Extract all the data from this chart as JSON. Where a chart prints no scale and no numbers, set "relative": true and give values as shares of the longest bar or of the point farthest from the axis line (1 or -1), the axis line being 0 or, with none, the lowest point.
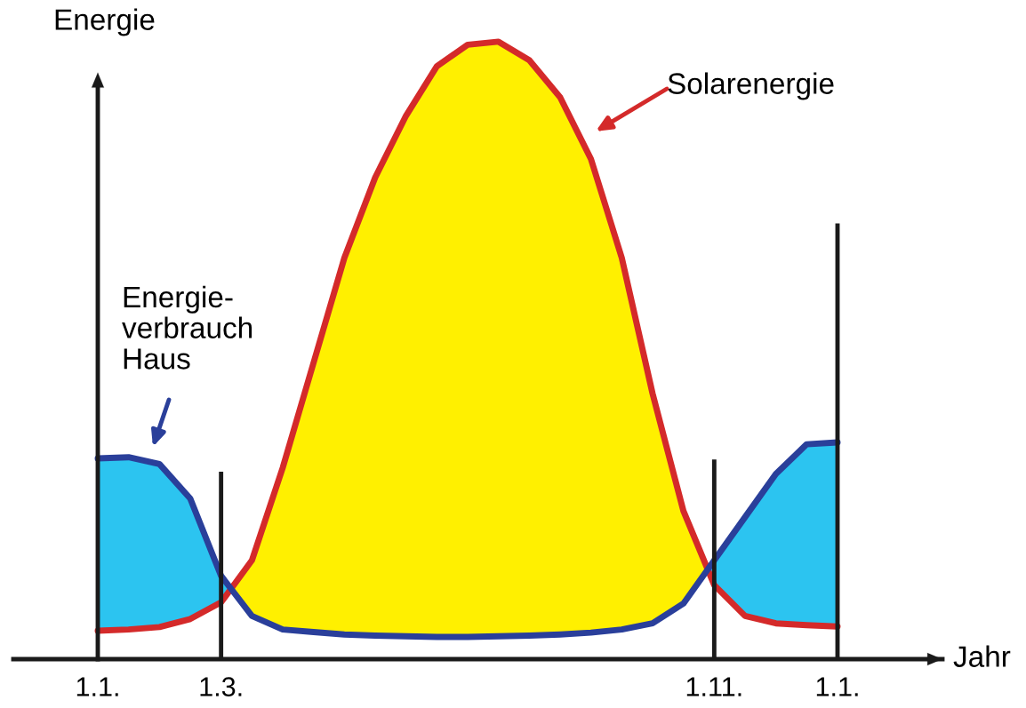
{
  "chart_data": {
    "type": "line",
    "relative": true,
    "xlabel": "Jahr",
    "ylabel": "Energie",
    "categories": [
      "1.1.",
      null,
      null,
      null,
      "1.3.",
      null,
      null,
      null,
      null,
      null,
      null,
      null,
      null,
      null,
      null,
      null,
      null,
      null,
      null,
      null,
      "1.11.",
      null,
      null,
      null,
      "1.1."
    ],
    "series": [
      {
        "color": "#d42a2a",
        "values": [
          0.046,
          0.048,
          0.052,
          0.065,
          0.092,
          0.16,
          0.31,
          0.48,
          0.65,
          0.78,
          0.88,
          0.96,
          0.995,
          1,
          0.97,
          0.91,
          0.81,
          0.65,
          0.43,
          0.24,
          0.12,
          0.07,
          0.058,
          0.055,
          0.053
        ]
      },
      {
        "color": "#2a3f9a",
        "values": [
          0.325,
          0.327,
          0.316,
          0.26,
          0.135,
          0.07,
          0.048,
          0.044,
          0.04,
          0.038,
          0.037,
          0.036,
          0.036,
          0.037,
          0.038,
          0.04,
          0.043,
          0.048,
          0.058,
          0.09,
          0.16,
          0.23,
          0.3,
          0.348,
          0.351
        ]
      }
    ],
    "ref_lines": [
      {
        "axis": "x",
        "value": "1.3.",
        "color": "#1a1a1a"
      },
      {
        "axis": "x",
        "value": "1.11.",
        "color": "#1a1a1a"
      },
      {
        "axis": "x",
        "value": "1.1.",
        "color": "#1a1a1a"
      }
    ],
    "annotations": [
      "Solarenergie",
      "Energie-\nverbrauch\nHaus"
    ]
  }
}
